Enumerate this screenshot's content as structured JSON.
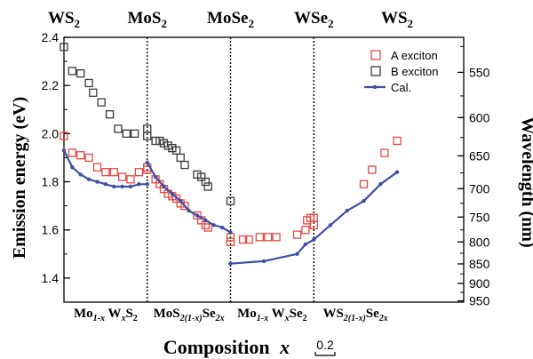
{
  "chart_data": {
    "type": "scatter",
    "xlabel_main": "Composition",
    "xlabel_var": "x",
    "xlabel_scale": "0.2",
    "ylabel": "Emission energy (eV)",
    "y2label": "Wavelength (nm)",
    "ylim": [
      1.3,
      2.4
    ],
    "xlim": [
      0,
      4.8
    ],
    "y_ticks": [
      1.4,
      1.6,
      1.8,
      2.0,
      2.2,
      2.4
    ],
    "y2_ticks": [
      550,
      600,
      650,
      700,
      750,
      800,
      850,
      900,
      950
    ],
    "y2_minor": [
      525,
      575,
      625,
      675,
      725,
      775,
      825,
      875,
      925
    ],
    "dividers": [
      1.0,
      2.0,
      3.0
    ],
    "top_labels": [
      {
        "x": 0.0,
        "base": "WS",
        "sub": "2"
      },
      {
        "x": 1.0,
        "base": "MoS",
        "sub": "2"
      },
      {
        "x": 2.0,
        "base": "MoSe",
        "sub": "2"
      },
      {
        "x": 3.0,
        "base": "WSe",
        "sub": "2"
      },
      {
        "x": 4.0,
        "base": "WS",
        "sub": "2"
      }
    ],
    "segment_labels": [
      {
        "x": 0.5,
        "parts": [
          [
            "Mo",
            ""
          ],
          [
            "1-x",
            "sub"
          ],
          [
            " W",
            ""
          ],
          [
            "x",
            "subi"
          ],
          [
            "S",
            ""
          ],
          [
            "2",
            "sub"
          ]
        ]
      },
      {
        "x": 1.5,
        "parts": [
          [
            "MoS",
            ""
          ],
          [
            "2(1-x)",
            "sub"
          ],
          [
            "Se",
            ""
          ],
          [
            "2x",
            "sub"
          ]
        ]
      },
      {
        "x": 2.5,
        "parts": [
          [
            "Mo",
            ""
          ],
          [
            "1-x",
            "sub"
          ],
          [
            " W",
            ""
          ],
          [
            "x",
            "subi"
          ],
          [
            "Se",
            ""
          ],
          [
            "2",
            "sub"
          ]
        ]
      },
      {
        "x": 3.5,
        "parts": [
          [
            "WS",
            ""
          ],
          [
            "2(1-x)",
            "sub"
          ],
          [
            "Se",
            ""
          ],
          [
            "2x",
            "sub"
          ]
        ]
      }
    ],
    "series": [
      {
        "name": "A exciton",
        "marker": "open-square",
        "color": "#e8473f",
        "points": [
          [
            0.0,
            1.99
          ],
          [
            0.1,
            1.92
          ],
          [
            0.2,
            1.91
          ],
          [
            0.3,
            1.9
          ],
          [
            0.4,
            1.86
          ],
          [
            0.5,
            1.84
          ],
          [
            0.6,
            1.84
          ],
          [
            0.7,
            1.82
          ],
          [
            0.8,
            1.81
          ],
          [
            0.9,
            1.84
          ],
          [
            1.0,
            1.85
          ],
          [
            1.0,
            1.86
          ],
          [
            1.1,
            1.81
          ],
          [
            1.15,
            1.79
          ],
          [
            1.2,
            1.77
          ],
          [
            1.25,
            1.75
          ],
          [
            1.3,
            1.74
          ],
          [
            1.35,
            1.73
          ],
          [
            1.4,
            1.71
          ],
          [
            1.45,
            1.7
          ],
          [
            1.6,
            1.66
          ],
          [
            1.65,
            1.64
          ],
          [
            1.7,
            1.62
          ],
          [
            1.73,
            1.61
          ],
          [
            2.0,
            1.55
          ],
          [
            2.0,
            1.57
          ],
          [
            2.15,
            1.56
          ],
          [
            2.22,
            1.56
          ],
          [
            2.35,
            1.57
          ],
          [
            2.45,
            1.57
          ],
          [
            2.55,
            1.57
          ],
          [
            2.8,
            1.58
          ],
          [
            2.9,
            1.6
          ],
          [
            2.92,
            1.64
          ],
          [
            2.96,
            1.65
          ],
          [
            3.0,
            1.65
          ],
          [
            3.0,
            1.62
          ],
          [
            3.6,
            1.79
          ],
          [
            3.7,
            1.85
          ],
          [
            3.85,
            1.92
          ],
          [
            4.0,
            1.97
          ]
        ]
      },
      {
        "name": "B exciton",
        "marker": "open-square",
        "color": "#3a3a3a",
        "points": [
          [
            0.0,
            2.36
          ],
          [
            0.1,
            2.26
          ],
          [
            0.2,
            2.25
          ],
          [
            0.3,
            2.21
          ],
          [
            0.35,
            2.17
          ],
          [
            0.45,
            2.13
          ],
          [
            0.55,
            2.08
          ],
          [
            0.65,
            2.02
          ],
          [
            0.75,
            2.0
          ],
          [
            0.85,
            2.0
          ],
          [
            1.0,
            2.02
          ],
          [
            1.0,
            1.99
          ],
          [
            1.1,
            1.97
          ],
          [
            1.15,
            1.97
          ],
          [
            1.2,
            1.96
          ],
          [
            1.25,
            1.95
          ],
          [
            1.3,
            1.94
          ],
          [
            1.35,
            1.93
          ],
          [
            1.4,
            1.9
          ],
          [
            1.45,
            1.87
          ],
          [
            1.6,
            1.83
          ],
          [
            1.65,
            1.82
          ],
          [
            1.7,
            1.8
          ],
          [
            1.73,
            1.78
          ],
          [
            2.0,
            1.72
          ]
        ]
      },
      {
        "name": "Cal.",
        "marker": "line-dot",
        "color": "#3e4fa4",
        "points": [
          [
            0.0,
            1.93
          ],
          [
            0.1,
            1.86
          ],
          [
            0.2,
            1.83
          ],
          [
            0.3,
            1.81
          ],
          [
            0.4,
            1.8
          ],
          [
            0.5,
            1.79
          ],
          [
            0.6,
            1.78
          ],
          [
            0.7,
            1.78
          ],
          [
            0.8,
            1.78
          ],
          [
            0.9,
            1.79
          ],
          [
            1.0,
            1.79
          ],
          [
            1.0,
            1.88
          ],
          [
            1.1,
            1.82
          ],
          [
            1.2,
            1.78
          ],
          [
            1.3,
            1.75
          ],
          [
            1.4,
            1.72
          ],
          [
            1.5,
            1.68
          ],
          [
            1.6,
            1.66
          ],
          [
            1.7,
            1.64
          ],
          [
            1.8,
            1.62
          ],
          [
            1.9,
            1.61
          ],
          [
            2.0,
            1.59
          ],
          [
            2.0,
            1.46
          ],
          [
            2.4,
            1.47
          ],
          [
            2.8,
            1.5
          ],
          [
            2.9,
            1.54
          ],
          [
            3.0,
            1.56
          ],
          [
            3.2,
            1.62
          ],
          [
            3.4,
            1.68
          ],
          [
            3.6,
            1.72
          ],
          [
            3.8,
            1.79
          ],
          [
            4.0,
            1.84
          ]
        ]
      }
    ],
    "legend": {
      "position": "top-right"
    }
  }
}
